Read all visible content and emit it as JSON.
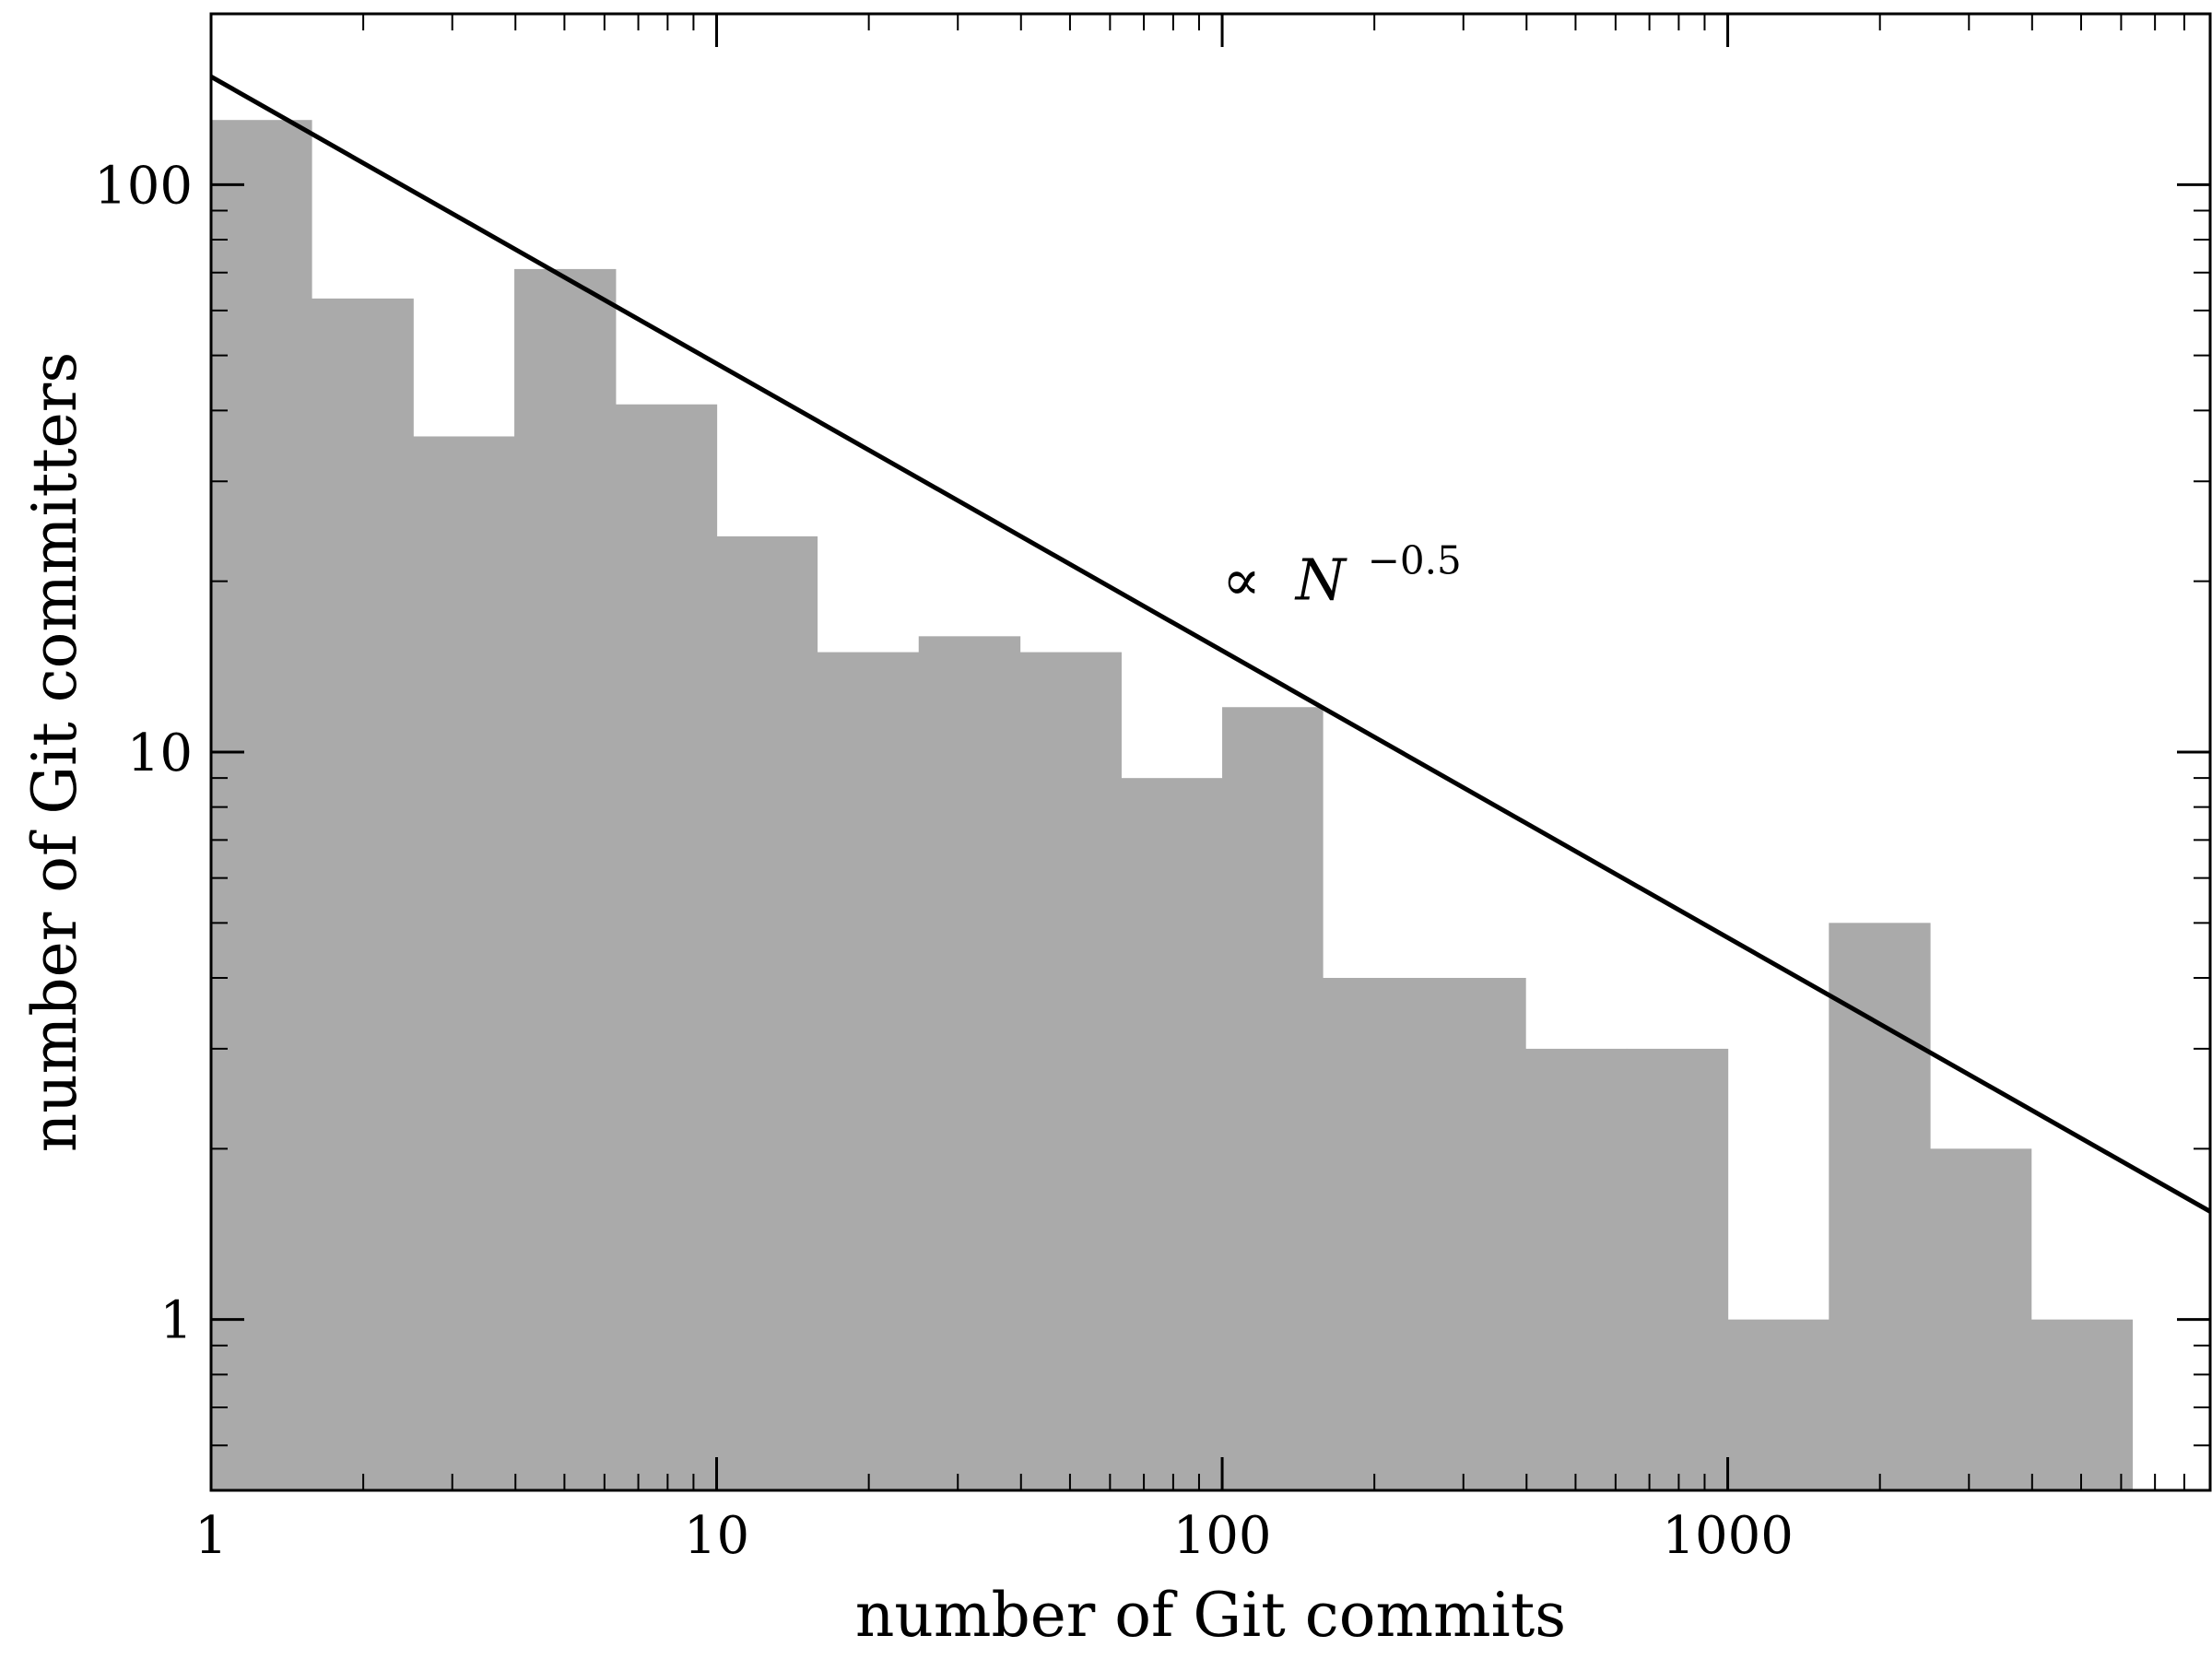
{
  "chart_data": {
    "type": "bar",
    "subtype": "histogram",
    "xscale": "log",
    "yscale": "log",
    "xlim": [
      1,
      9000
    ],
    "ylim": [
      0.5,
      200
    ],
    "xlabel": "number of Git commits",
    "ylabel": "number of Git committers",
    "xticks": [
      1,
      10,
      100,
      1000
    ],
    "xticklabels": [
      "1",
      "10",
      "100",
      "1000"
    ],
    "yticks": [
      1,
      10,
      100
    ],
    "yticklabels": [
      "1",
      "10",
      "100"
    ],
    "bin_edges": [
      1,
      1.58,
      2.51,
      3.98,
      6.31,
      10,
      15.8,
      25.1,
      39.8,
      63.1,
      100,
      158,
      251,
      398,
      631,
      1000,
      1585,
      2512,
      3981,
      6310
    ],
    "counts": [
      130,
      63,
      36,
      71,
      41,
      24,
      15,
      16,
      15,
      9,
      12,
      4,
      4,
      3,
      3,
      1,
      5,
      2,
      1
    ],
    "bar_color": "#aaaaaa",
    "fit_line": {
      "exponent": -0.5,
      "points": [
        [
          1,
          155
        ],
        [
          9000,
          1.55
        ]
      ],
      "color": "#000000"
    },
    "annotation": {
      "prefix": "∝",
      "symbol": "N",
      "exponent_text": "−0.5",
      "anchor": [
        100,
        20
      ]
    },
    "grid": false,
    "minor_ticks": true,
    "ticks_direction": "in",
    "ticks_on_all_sides": true
  }
}
